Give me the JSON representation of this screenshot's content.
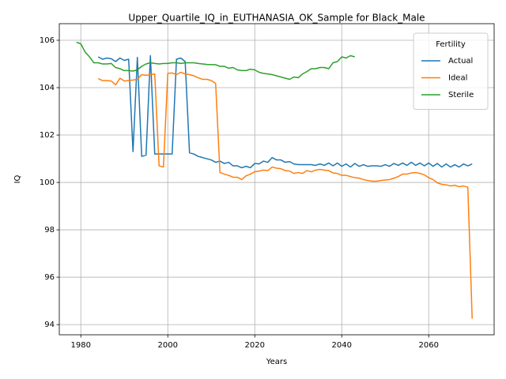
{
  "chart_data": {
    "type": "line",
    "title": "Upper_Quartile_IQ_in_EUTHANASIA_OK_Sample for Black_Male",
    "xlabel": "Years",
    "ylabel": "IQ",
    "x": [
      1979,
      1980,
      1981,
      1982,
      1983,
      1984,
      1985,
      1986,
      1987,
      1988,
      1989,
      1990,
      1991,
      1992,
      1993,
      1994,
      1995,
      1996,
      1997,
      1998,
      1999,
      2000,
      2001,
      2002,
      2003,
      2004,
      2005,
      2006,
      2007,
      2008,
      2009,
      2010,
      2011,
      2012,
      2013,
      2014,
      2015,
      2016,
      2017,
      2018,
      2019,
      2020,
      2021,
      2022,
      2023,
      2024,
      2025,
      2026,
      2027,
      2028,
      2029,
      2030,
      2031,
      2032,
      2033,
      2034,
      2035,
      2036,
      2037,
      2038,
      2039,
      2040,
      2041,
      2042,
      2043,
      2044,
      2045,
      2046,
      2047,
      2048,
      2049,
      2050,
      2051,
      2052,
      2053,
      2054,
      2055,
      2056,
      2057,
      2058,
      2059,
      2060,
      2061,
      2062,
      2063,
      2064,
      2065,
      2066,
      2067,
      2068,
      2069,
      2070
    ],
    "series": [
      {
        "name": "Actual",
        "color": "#1f77b4",
        "values": [
          null,
          null,
          null,
          null,
          null,
          105.3,
          105.2,
          105.25,
          105.22,
          105.1,
          105.25,
          105.15,
          105.2,
          101.3,
          105.28,
          101.1,
          101.15,
          105.35,
          101.2,
          101.2,
          101.2,
          101.2,
          101.2,
          105.2,
          105.25,
          105.1,
          101.25,
          101.2,
          101.1,
          101.05,
          101.0,
          100.95,
          100.85,
          100.9,
          100.8,
          100.85,
          100.7,
          100.7,
          100.62,
          100.68,
          100.62,
          100.8,
          100.78,
          100.9,
          100.85,
          101.05,
          100.95,
          100.95,
          100.85,
          100.88,
          100.78,
          100.75,
          100.75,
          100.75,
          100.75,
          100.72,
          100.78,
          100.72,
          100.82,
          100.7,
          100.82,
          100.68,
          100.78,
          100.65,
          100.8,
          100.68,
          100.75,
          100.68,
          100.7,
          100.7,
          100.68,
          100.75,
          100.68,
          100.8,
          100.72,
          100.82,
          100.72,
          100.85,
          100.72,
          100.82,
          100.7,
          100.82,
          100.68,
          100.8,
          100.65,
          100.78,
          100.65,
          100.75,
          100.65,
          100.78,
          100.7,
          100.78
        ]
      },
      {
        "name": "Ideal",
        "color": "#ff7f0e",
        "values": [
          null,
          null,
          null,
          null,
          null,
          104.38,
          104.3,
          104.3,
          104.28,
          104.12,
          104.4,
          104.28,
          104.3,
          104.32,
          104.35,
          104.55,
          104.52,
          104.55,
          104.58,
          100.7,
          100.65,
          104.6,
          104.62,
          104.55,
          104.65,
          104.58,
          104.55,
          104.5,
          104.42,
          104.35,
          104.35,
          104.3,
          104.18,
          100.42,
          100.35,
          100.3,
          100.22,
          100.22,
          100.12,
          100.28,
          100.35,
          100.45,
          100.48,
          100.52,
          100.5,
          100.65,
          100.6,
          100.58,
          100.5,
          100.48,
          100.38,
          100.42,
          100.38,
          100.5,
          100.45,
          100.52,
          100.55,
          100.52,
          100.5,
          100.4,
          100.38,
          100.3,
          100.3,
          100.25,
          100.2,
          100.18,
          100.12,
          100.08,
          100.05,
          100.05,
          100.08,
          100.1,
          100.12,
          100.18,
          100.25,
          100.35,
          100.35,
          100.4,
          100.42,
          100.38,
          100.32,
          100.2,
          100.12,
          99.98,
          99.92,
          99.9,
          99.85,
          99.88,
          99.82,
          99.85,
          99.8,
          94.25
        ]
      },
      {
        "name": "Sterile",
        "color": "#2ca02c",
        "values": [
          105.92,
          105.85,
          105.5,
          105.3,
          105.05,
          105.05,
          105.0,
          105.0,
          105.02,
          104.85,
          104.8,
          104.72,
          104.72,
          104.7,
          104.75,
          104.9,
          105.0,
          105.05,
          105.02,
          105.0,
          105.02,
          105.02,
          105.05,
          105.05,
          105.02,
          105.05,
          105.05,
          105.05,
          105.02,
          105.0,
          104.98,
          104.97,
          104.97,
          104.9,
          104.9,
          104.82,
          104.85,
          104.75,
          104.72,
          104.72,
          104.78,
          104.75,
          104.65,
          104.6,
          104.58,
          104.55,
          104.5,
          104.45,
          104.4,
          104.35,
          104.45,
          104.42,
          104.58,
          104.68,
          104.8,
          104.8,
          104.85,
          104.85,
          104.8,
          105.05,
          105.1,
          105.3,
          105.25,
          105.35,
          105.3,
          null,
          null,
          null,
          null,
          null,
          null,
          null,
          null,
          null,
          null,
          null,
          null,
          null,
          null,
          null,
          null,
          null,
          null,
          null,
          null,
          null,
          null,
          null,
          null,
          null,
          null,
          null
        ]
      }
    ],
    "xlim": [
      1975.05,
      2075.05
    ],
    "xticks": [
      1980,
      2000,
      2020,
      2040,
      2060
    ],
    "ylim": [
      93.57,
      106.7
    ],
    "yticks": [
      94,
      96,
      98,
      100,
      102,
      104,
      106
    ],
    "grid": true,
    "legend": {
      "title": "Fertility",
      "loc": "upper right"
    }
  }
}
